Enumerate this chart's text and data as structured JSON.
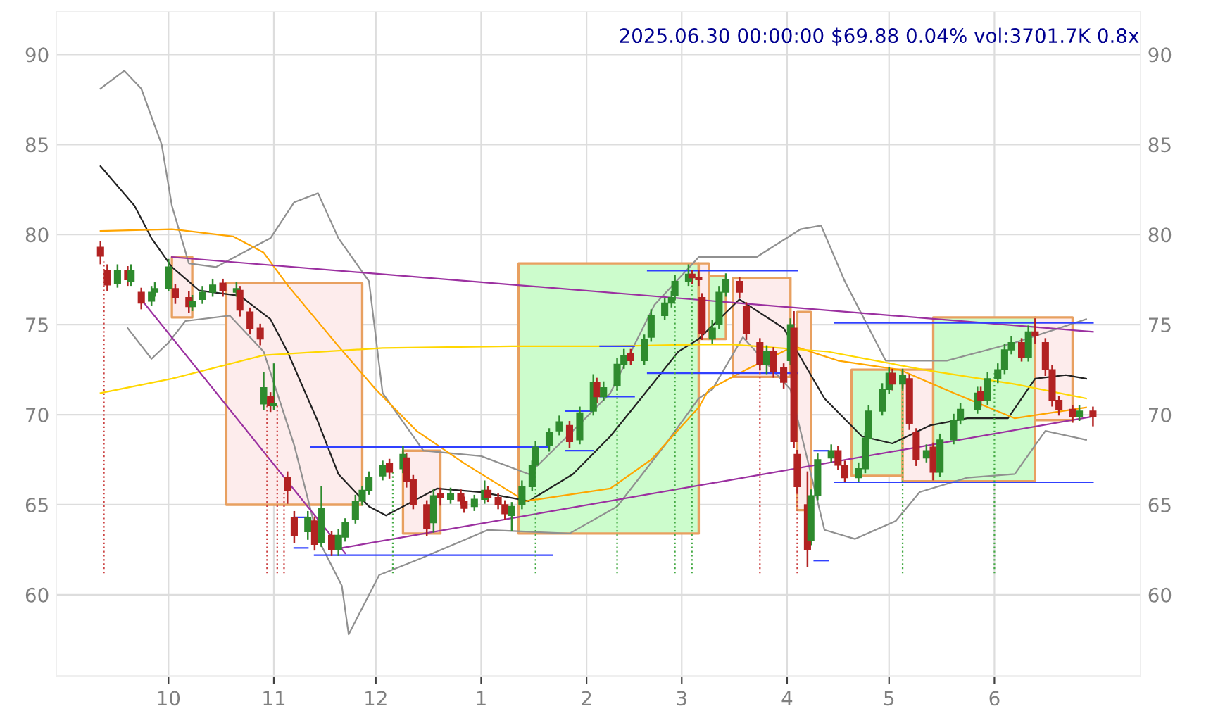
{
  "chart_data": {
    "type": "candlestick",
    "title": "2025.06.30 00:00:00 $69.88 0.04% vol:3701.7K 0.8x",
    "x": [
      "2024-09-11",
      "2024-09-13",
      "2024-09-16",
      "2024-09-19",
      "2024-09-20",
      "2024-09-23",
      "2024-09-26",
      "2024-09-27",
      "2024-10-01",
      "2024-10-03",
      "2024-10-07",
      "2024-10-08",
      "2024-10-11",
      "2024-10-14",
      "2024-10-17",
      "2024-10-21",
      "2024-10-22",
      "2024-10-25",
      "2024-10-28",
      "2024-10-29",
      "2024-10-31",
      "2024-11-01",
      "2024-11-05",
      "2024-11-07",
      "2024-11-11",
      "2024-11-13",
      "2024-11-15",
      "2024-11-18",
      "2024-11-20",
      "2024-11-22",
      "2024-11-25",
      "2024-11-27",
      "2024-11-29",
      "2024-12-03",
      "2024-12-05",
      "2024-12-09",
      "2024-12-10",
      "2024-12-12",
      "2024-12-16",
      "2024-12-18",
      "2024-12-20",
      "2024-12-23",
      "2024-12-26",
      "2024-12-27",
      "2024-12-30",
      "2025-01-02",
      "2025-01-03",
      "2025-01-06",
      "2025-01-08",
      "2025-01-10",
      "2025-01-13",
      "2025-01-16",
      "2025-01-17",
      "2025-01-21",
      "2025-01-24",
      "2025-01-27",
      "2025-01-30",
      "2025-02-03",
      "2025-02-04",
      "2025-02-06",
      "2025-02-10",
      "2025-02-12",
      "2025-02-14",
      "2025-02-18",
      "2025-02-20",
      "2025-02-24",
      "2025-02-26",
      "2025-02-27",
      "2025-03-03",
      "2025-03-04",
      "2025-03-06",
      "2025-03-07",
      "2025-03-10",
      "2025-03-12",
      "2025-03-14",
      "2025-03-18",
      "2025-03-20",
      "2025-03-24",
      "2025-03-26",
      "2025-03-28",
      "2025-03-31",
      "2025-04-02",
      "2025-04-03",
      "2025-04-04",
      "2025-04-07",
      "2025-04-08",
      "2025-04-10",
      "2025-04-14",
      "2025-04-16",
      "2025-04-18",
      "2025-04-22",
      "2025-04-24",
      "2025-04-25",
      "2025-04-29",
      "2025-05-01",
      "2025-05-02",
      "2025-05-05",
      "2025-05-07",
      "2025-05-09",
      "2025-05-12",
      "2025-05-14",
      "2025-05-16",
      "2025-05-20",
      "2025-05-22",
      "2025-05-27",
      "2025-05-28",
      "2025-05-30",
      "2025-06-02",
      "2025-06-04",
      "2025-06-06",
      "2025-06-09",
      "2025-06-11",
      "2025-06-13",
      "2025-06-16",
      "2025-06-18",
      "2025-06-20",
      "2025-06-24",
      "2025-06-26",
      "2025-06-30"
    ],
    "ohlc": [
      [
        79.3,
        79.6,
        78.4,
        78.8
      ],
      [
        78.0,
        78.3,
        76.9,
        77.2
      ],
      [
        77.3,
        78.3,
        77.1,
        78.0
      ],
      [
        78.0,
        78.2,
        77.2,
        77.5
      ],
      [
        77.4,
        78.3,
        77.2,
        78.0
      ],
      [
        76.8,
        77.0,
        75.9,
        76.2
      ],
      [
        76.3,
        77.1,
        76.1,
        76.8
      ],
      [
        76.8,
        77.3,
        76.6,
        77.0
      ],
      [
        77.0,
        78.6,
        76.9,
        78.2
      ],
      [
        77.0,
        77.2,
        76.2,
        76.5
      ],
      [
        76.5,
        76.8,
        75.7,
        76.0
      ],
      [
        76.0,
        76.6,
        75.8,
        76.3
      ],
      [
        76.4,
        77.1,
        76.2,
        76.8
      ],
      [
        76.8,
        77.5,
        76.6,
        77.2
      ],
      [
        77.3,
        77.5,
        76.6,
        76.9
      ],
      [
        76.8,
        77.3,
        76.6,
        77.0
      ],
      [
        76.9,
        77.1,
        75.5,
        75.8
      ],
      [
        75.7,
        75.9,
        74.5,
        74.8
      ],
      [
        74.8,
        75.0,
        73.9,
        74.2
      ],
      [
        70.6,
        72.3,
        70.3,
        71.5
      ],
      [
        71.0,
        71.2,
        70.2,
        70.5
      ],
      [
        70.5,
        72.8,
        70.3,
        70.6
      ],
      [
        66.5,
        66.8,
        65.1,
        65.8
      ],
      [
        64.3,
        64.6,
        62.9,
        63.3
      ],
      [
        63.5,
        64.6,
        63.1,
        64.3
      ],
      [
        64.1,
        64.3,
        62.5,
        62.8
      ],
      [
        62.9,
        66.0,
        62.7,
        64.8
      ],
      [
        63.3,
        63.5,
        62.2,
        62.5
      ],
      [
        62.5,
        63.6,
        62.2,
        63.3
      ],
      [
        63.2,
        64.2,
        63.0,
        64.0
      ],
      [
        64.2,
        65.5,
        64.0,
        65.2
      ],
      [
        65.2,
        66.0,
        65.0,
        65.8
      ],
      [
        65.8,
        66.8,
        65.6,
        66.5
      ],
      [
        66.6,
        67.4,
        66.4,
        67.2
      ],
      [
        67.3,
        67.5,
        66.5,
        66.8
      ],
      [
        67.0,
        68.2,
        66.8,
        67.8
      ],
      [
        67.6,
        67.8,
        66.0,
        66.3
      ],
      [
        66.4,
        66.6,
        64.8,
        65.0
      ],
      [
        65.0,
        65.2,
        63.3,
        63.7
      ],
      [
        64.0,
        65.8,
        63.5,
        65.5
      ],
      [
        65.6,
        65.9,
        65.0,
        65.4
      ],
      [
        65.3,
        65.9,
        65.1,
        65.6
      ],
      [
        65.6,
        65.8,
        65.0,
        65.2
      ],
      [
        65.2,
        65.4,
        64.6,
        64.8
      ],
      [
        64.9,
        65.5,
        64.7,
        65.3
      ],
      [
        65.3,
        66.3,
        65.1,
        65.8
      ],
      [
        65.8,
        66.0,
        65.2,
        65.4
      ],
      [
        65.4,
        65.6,
        64.8,
        65.0
      ],
      [
        65.0,
        65.2,
        64.2,
        64.5
      ],
      [
        64.4,
        65.1,
        63.6,
        64.9
      ],
      [
        65.0,
        66.3,
        64.8,
        66.0
      ],
      [
        66.0,
        67.4,
        65.8,
        67.2
      ],
      [
        67.2,
        68.5,
        67.0,
        68.2
      ],
      [
        68.3,
        69.2,
        68.0,
        69.0
      ],
      [
        69.1,
        69.9,
        68.9,
        69.6
      ],
      [
        69.4,
        69.6,
        68.2,
        68.5
      ],
      [
        68.6,
        70.4,
        68.4,
        70.1
      ],
      [
        70.2,
        72.2,
        70.0,
        71.8
      ],
      [
        71.8,
        72.0,
        70.7,
        71.0
      ],
      [
        71.0,
        71.8,
        70.8,
        71.5
      ],
      [
        71.6,
        73.1,
        71.4,
        72.8
      ],
      [
        72.8,
        73.6,
        72.6,
        73.3
      ],
      [
        73.4,
        73.6,
        72.8,
        73.0
      ],
      [
        73.0,
        74.4,
        72.8,
        74.2
      ],
      [
        74.3,
        75.8,
        74.1,
        75.5
      ],
      [
        75.5,
        76.4,
        75.3,
        76.2
      ],
      [
        76.2,
        76.8,
        76.0,
        76.5
      ],
      [
        76.6,
        77.7,
        76.4,
        77.4
      ],
      [
        77.4,
        78.3,
        77.2,
        77.8
      ],
      [
        77.8,
        78.0,
        77.3,
        77.6
      ],
      [
        77.6,
        78.0,
        77.2,
        77.5
      ],
      [
        76.5,
        76.7,
        74.2,
        74.5
      ],
      [
        74.2,
        75.2,
        74.0,
        74.8
      ],
      [
        75.0,
        77.1,
        74.8,
        76.8
      ],
      [
        76.8,
        77.8,
        76.6,
        77.5
      ],
      [
        77.4,
        77.6,
        76.5,
        76.8
      ],
      [
        76.0,
        76.2,
        74.2,
        74.5
      ],
      [
        74.0,
        74.2,
        72.5,
        72.8
      ],
      [
        72.8,
        73.8,
        72.3,
        73.5
      ],
      [
        73.5,
        73.7,
        72.1,
        72.4
      ],
      [
        72.6,
        72.8,
        71.5,
        71.8
      ],
      [
        73.0,
        75.3,
        72.8,
        75.0
      ],
      [
        74.8,
        75.7,
        68.2,
        68.5
      ],
      [
        67.8,
        68.0,
        65.7,
        66.0
      ],
      [
        65.0,
        66.8,
        61.6,
        62.5
      ],
      [
        63.0,
        65.8,
        62.8,
        65.5
      ],
      [
        65.5,
        67.8,
        65.3,
        67.5
      ],
      [
        67.6,
        68.3,
        67.4,
        68.0
      ],
      [
        68.0,
        68.2,
        67.0,
        67.2
      ],
      [
        67.2,
        67.4,
        66.3,
        66.5
      ],
      [
        66.5,
        67.3,
        66.3,
        67.0
      ],
      [
        67.0,
        69.0,
        66.8,
        68.7
      ],
      [
        68.7,
        70.5,
        68.5,
        70.2
      ],
      [
        70.2,
        71.7,
        70.0,
        71.4
      ],
      [
        71.4,
        72.6,
        71.2,
        72.3
      ],
      [
        72.3,
        72.5,
        71.4,
        71.7
      ],
      [
        71.7,
        72.5,
        71.5,
        72.2
      ],
      [
        72.0,
        72.2,
        69.2,
        69.5
      ],
      [
        69.0,
        69.2,
        67.2,
        67.5
      ],
      [
        67.6,
        68.3,
        67.4,
        68.0
      ],
      [
        68.2,
        68.4,
        66.4,
        66.8
      ],
      [
        66.8,
        68.9,
        66.6,
        68.6
      ],
      [
        68.6,
        70.0,
        68.4,
        69.7
      ],
      [
        69.7,
        70.6,
        69.5,
        70.3
      ],
      [
        70.3,
        71.5,
        70.1,
        71.2
      ],
      [
        71.3,
        71.5,
        70.5,
        70.8
      ],
      [
        70.8,
        72.3,
        70.6,
        72.0
      ],
      [
        72.0,
        72.8,
        71.8,
        72.5
      ],
      [
        72.5,
        73.9,
        72.3,
        73.6
      ],
      [
        73.6,
        74.3,
        73.4,
        74.0
      ],
      [
        74.0,
        74.2,
        73.0,
        73.2
      ],
      [
        73.2,
        74.9,
        73.0,
        74.6
      ],
      [
        74.6,
        75.3,
        74.0,
        74.4
      ],
      [
        74.0,
        74.2,
        72.2,
        72.5
      ],
      [
        72.5,
        72.7,
        70.5,
        70.8
      ],
      [
        70.8,
        71.0,
        70.0,
        70.3
      ],
      [
        70.3,
        70.5,
        69.6,
        69.9
      ],
      [
        69.9,
        70.5,
        69.7,
        70.2
      ],
      [
        70.2,
        70.4,
        69.4,
        69.88
      ]
    ],
    "colors": [
      "#b22222",
      "#b22222",
      "#2e8b2e",
      "#b22222",
      "#2e8b2e",
      "#b22222",
      "#2e8b2e",
      "#2e8b2e",
      "#2e8b2e",
      "#b22222",
      "#b22222",
      "#2e8b2e",
      "#2e8b2e",
      "#2e8b2e",
      "#b22222",
      "#2e8b2e",
      "#b22222",
      "#b22222",
      "#b22222",
      "#2e8b2e",
      "#b22222",
      "#2e8b2e",
      "#b22222",
      "#b22222",
      "#2e8b2e",
      "#b22222",
      "#2e8b2e",
      "#b22222",
      "#2e8b2e",
      "#2e8b2e",
      "#2e8b2e",
      "#2e8b2e",
      "#2e8b2e",
      "#2e8b2e",
      "#b22222",
      "#2e8b2e",
      "#b22222",
      "#b22222",
      "#b22222",
      "#2e8b2e",
      "#b22222",
      "#2e8b2e",
      "#b22222",
      "#b22222",
      "#2e8b2e",
      "#2e8b2e",
      "#b22222",
      "#b22222",
      "#b22222",
      "#2e8b2e",
      "#2e8b2e",
      "#2e8b2e",
      "#2e8b2e",
      "#2e8b2e",
      "#2e8b2e",
      "#b22222",
      "#2e8b2e",
      "#2e8b2e",
      "#b22222",
      "#2e8b2e",
      "#2e8b2e",
      "#2e8b2e",
      "#b22222",
      "#2e8b2e",
      "#2e8b2e",
      "#2e8b2e",
      "#2e8b2e",
      "#2e8b2e",
      "#2e8b2e",
      "#b22222",
      "#b22222",
      "#b22222",
      "#2e8b2e",
      "#2e8b2e",
      "#2e8b2e",
      "#b22222",
      "#b22222",
      "#b22222",
      "#2e8b2e",
      "#b22222",
      "#b22222",
      "#2e8b2e",
      "#b22222",
      "#b22222",
      "#b22222",
      "#2e8b2e",
      "#2e8b2e",
      "#2e8b2e",
      "#b22222",
      "#b22222",
      "#2e8b2e",
      "#2e8b2e",
      "#2e8b2e",
      "#2e8b2e",
      "#2e8b2e",
      "#b22222",
      "#2e8b2e",
      "#b22222",
      "#b22222",
      "#2e8b2e",
      "#b22222",
      "#2e8b2e",
      "#2e8b2e",
      "#2e8b2e",
      "#2e8b2e",
      "#b22222",
      "#2e8b2e",
      "#2e8b2e",
      "#2e8b2e",
      "#2e8b2e",
      "#b22222",
      "#2e8b2e",
      "#b22222",
      "#b22222",
      "#b22222",
      "#b22222",
      "#b22222",
      "#2e8b2e",
      "#b22222"
    ],
    "series": [
      {
        "type": "area",
        "color": "#fdecec",
        "x": [
          "2024-10-02",
          "2024-10-08"
        ],
        "values": [
          null,
          null
        ],
        "upper": [
          78.75,
          78.75
        ],
        "lower": [
          75.4,
          75.4
        ]
      },
      {
        "type": "area",
        "color": "#fdecec",
        "x": [
          "2024-10-18",
          "2024-11-27"
        ],
        "values": [
          null,
          null
        ],
        "upper": [
          77.3,
          77.3
        ],
        "lower": [
          65.0,
          65.0
        ]
      },
      {
        "type": "area",
        "color": "#fdecec",
        "x": [
          "2024-12-09",
          "2024-12-20"
        ],
        "values": [
          null,
          null
        ],
        "upper": [
          68.0,
          68.0
        ],
        "lower": [
          63.4,
          63.4
        ]
      },
      {
        "type": "area",
        "color": "#ccfccc",
        "x": [
          "2025-01-12",
          "2025-03-06"
        ],
        "values": [
          null,
          null
        ],
        "upper": [
          78.4,
          78.4
        ],
        "lower": [
          63.4,
          63.4
        ]
      },
      {
        "type": "area",
        "color": "#fdecec",
        "x": [
          "2025-03-06",
          "2025-03-09"
        ],
        "values": [
          null,
          null
        ],
        "upper": [
          78.4,
          78.4
        ],
        "lower": [
          74.2,
          74.2
        ]
      },
      {
        "type": "area",
        "color": "#ccfccc",
        "x": [
          "2025-03-09",
          "2025-03-14"
        ],
        "values": [
          null,
          null
        ],
        "upper": [
          77.7,
          77.7
        ],
        "lower": [
          74.2,
          74.2
        ]
      },
      {
        "type": "area",
        "color": "#fdecec",
        "x": [
          "2025-03-16",
          "2025-04-02"
        ],
        "values": [
          null,
          null
        ],
        "upper": [
          77.6,
          77.6
        ],
        "lower": [
          72.1,
          72.1
        ]
      },
      {
        "type": "area",
        "color": "#fdecec",
        "x": [
          "2025-04-04",
          "2025-04-08"
        ],
        "values": [
          null,
          null
        ],
        "upper": [
          75.7,
          75.7
        ],
        "lower": [
          64.7,
          64.7
        ]
      },
      {
        "type": "area",
        "color": "#ccfccc",
        "x": [
          "2025-04-20",
          "2025-05-05"
        ],
        "values": [
          null,
          null
        ],
        "upper": [
          72.5,
          72.5
        ],
        "lower": [
          66.6,
          66.6
        ]
      },
      {
        "type": "area",
        "color": "#fdecec",
        "x": [
          "2025-05-05",
          "2025-05-14"
        ],
        "values": [
          null,
          null
        ],
        "upper": [
          72.5,
          72.5
        ],
        "lower": [
          66.3,
          66.3
        ]
      },
      {
        "type": "area",
        "color": "#ccfccc",
        "x": [
          "2025-05-14",
          "2025-06-13"
        ],
        "values": [
          null,
          null
        ],
        "upper": [
          75.4,
          75.4
        ],
        "lower": [
          66.3,
          66.3
        ]
      },
      {
        "type": "area",
        "color": "#fdecec",
        "x": [
          "2025-06-13",
          "2025-06-24"
        ],
        "values": [
          null,
          null
        ],
        "upper": [
          75.4,
          75.4
        ],
        "lower": [
          69.7,
          69.7
        ]
      },
      {
        "type": "line",
        "color": "#909090",
        "x": [
          "2024-09-11",
          "2024-09-18",
          "2024-09-23",
          "2024-09-29",
          "2024-10-02",
          "2024-10-07",
          "2024-10-15",
          "2024-10-31",
          "2024-11-07",
          "2024-11-14",
          "2024-11-20",
          "2024-11-29",
          "2024-12-03",
          "2024-12-15",
          "2025-01-01",
          "2025-01-15",
          "2025-01-28",
          "2025-02-08",
          "2025-02-21",
          "2025-03-06",
          "2025-03-23",
          "2025-04-05",
          "2025-04-11",
          "2025-04-18",
          "2025-04-30",
          "2025-05-18",
          "2025-06-07",
          "2025-06-28"
        ],
        "values": [
          88.1,
          89.1,
          88.1,
          85.0,
          81.6,
          78.4,
          78.2,
          79.8,
          81.8,
          82.3,
          79.8,
          77.4,
          71.2,
          68.0,
          67.7,
          66.7,
          69.1,
          71.2,
          76.1,
          78.75,
          78.75,
          80.3,
          80.5,
          77.4,
          73.0,
          73.0,
          74.0,
          75.3
        ]
      },
      {
        "type": "line",
        "color": "#909090",
        "x": [
          "2024-09-19",
          "2024-09-26",
          "2024-10-01",
          "2024-10-06",
          "2024-10-19",
          "2024-10-29",
          "2024-11-07",
          "2024-11-14",
          "2024-11-21",
          "2024-11-23",
          "2024-12-02",
          "2024-12-14",
          "2025-01-03",
          "2025-01-27",
          "2025-02-10",
          "2025-02-24",
          "2025-03-06",
          "2025-03-10",
          "2025-03-19",
          "2025-04-02",
          "2025-04-12",
          "2025-04-21",
          "2025-05-03",
          "2025-05-10",
          "2025-05-24",
          "2025-06-07",
          "2025-06-16",
          "2025-06-28"
        ],
        "values": [
          74.8,
          73.1,
          74.0,
          75.2,
          75.5,
          73.5,
          68.3,
          63.1,
          60.5,
          57.8,
          61.1,
          62.0,
          63.6,
          63.4,
          64.9,
          68.3,
          70.9,
          71.4,
          74.3,
          71.4,
          63.6,
          63.1,
          64.1,
          65.7,
          66.5,
          66.7,
          69.1,
          68.6
        ]
      },
      {
        "type": "line",
        "color": "#222222",
        "x": [
          "2024-09-11",
          "2024-09-21",
          "2024-09-26",
          "2024-10-02",
          "2024-10-10",
          "2024-10-22",
          "2024-10-31",
          "2024-11-05",
          "2024-11-14",
          "2024-11-20",
          "2024-11-29",
          "2024-12-04",
          "2024-12-19",
          "2025-01-01",
          "2025-01-15",
          "2025-01-28",
          "2025-02-08",
          "2025-02-17",
          "2025-02-28",
          "2025-03-06",
          "2025-03-18",
          "2025-03-31",
          "2025-04-12",
          "2025-04-23",
          "2025-05-02",
          "2025-05-13",
          "2025-05-24",
          "2025-06-05",
          "2025-06-13",
          "2025-06-22",
          "2025-06-28"
        ],
        "values": [
          83.8,
          81.6,
          79.8,
          78.2,
          76.9,
          76.6,
          75.3,
          73.5,
          69.6,
          66.7,
          64.9,
          64.4,
          65.9,
          65.7,
          65.2,
          66.7,
          68.8,
          70.9,
          73.5,
          74.2,
          76.4,
          74.8,
          70.9,
          68.8,
          68.4,
          69.4,
          69.8,
          69.8,
          72.0,
          72.2,
          72.0
        ]
      },
      {
        "type": "line",
        "color": "#ffa500",
        "x": [
          "2024-09-11",
          "2024-10-02",
          "2024-10-20",
          "2024-10-29",
          "2024-11-05",
          "2024-11-20",
          "2024-12-01",
          "2024-12-13",
          "2024-12-27",
          "2025-01-14",
          "2025-02-08",
          "2025-02-20",
          "2025-03-06",
          "2025-03-09",
          "2025-03-20",
          "2025-04-03",
          "2025-04-16",
          "2025-05-04",
          "2025-05-20",
          "2025-06-07",
          "2025-06-28"
        ],
        "values": [
          80.2,
          80.3,
          79.9,
          79.0,
          77.2,
          73.8,
          71.4,
          69.1,
          67.3,
          65.2,
          65.9,
          67.5,
          70.4,
          71.4,
          72.5,
          73.8,
          73.0,
          72.5,
          71.2,
          69.8,
          70.4
        ]
      },
      {
        "type": "line",
        "color": "#ffd700",
        "x": [
          "2024-09-11",
          "2024-10-02",
          "2024-10-29",
          "2024-12-03",
          "2025-01-10",
          "2025-02-08",
          "2025-03-06",
          "2025-03-16",
          "2025-04-13",
          "2025-05-11",
          "2025-06-07",
          "2025-06-28"
        ],
        "values": [
          71.2,
          72.0,
          73.3,
          73.7,
          73.8,
          73.8,
          73.9,
          73.9,
          73.5,
          72.5,
          71.7,
          70.9
        ]
      },
      {
        "type": "line",
        "color": "#9b30a0",
        "x": [
          "2024-10-02",
          "2025-06-30"
        ],
        "values": [
          78.75,
          74.6
        ]
      },
      {
        "type": "line",
        "color": "#9b30a0",
        "x": [
          "2024-09-23",
          "2024-11-22"
        ],
        "values": [
          76.4,
          62.3
        ]
      },
      {
        "type": "line",
        "color": "#9b30a0",
        "x": [
          "2024-11-21",
          "2025-06-30"
        ],
        "values": [
          62.6,
          69.9
        ]
      },
      {
        "type": "line",
        "color": "#3040ff",
        "x": [
          "2024-11-12",
          "2025-01-21"
        ],
        "values": [
          68.2,
          68.2
        ]
      },
      {
        "type": "line",
        "color": "#3040ff",
        "x": [
          "2024-11-13",
          "2025-01-22"
        ],
        "values": [
          62.2,
          62.2
        ]
      },
      {
        "type": "line",
        "color": "#3040ff",
        "x": [
          "2024-11-07",
          "2024-11-11"
        ],
        "values": [
          64.3,
          64.3
        ]
      },
      {
        "type": "line",
        "color": "#3040ff",
        "x": [
          "2024-11-07",
          "2024-11-11"
        ],
        "values": [
          62.6,
          62.6
        ]
      },
      {
        "type": "line",
        "color": "#3040ff",
        "x": [
          "2025-01-26",
          "2025-02-03"
        ],
        "values": [
          70.2,
          70.2
        ]
      },
      {
        "type": "line",
        "color": "#3040ff",
        "x": [
          "2025-01-26",
          "2025-02-03"
        ],
        "values": [
          68.0,
          68.0
        ]
      },
      {
        "type": "line",
        "color": "#3040ff",
        "x": [
          "2025-02-05",
          "2025-02-15"
        ],
        "values": [
          73.8,
          73.8
        ]
      },
      {
        "type": "line",
        "color": "#3040ff",
        "x": [
          "2025-02-05",
          "2025-02-15"
        ],
        "values": [
          71.0,
          71.0
        ]
      },
      {
        "type": "line",
        "color": "#3040ff",
        "x": [
          "2025-02-19",
          "2025-04-04"
        ],
        "values": [
          78.0,
          78.0
        ]
      },
      {
        "type": "line",
        "color": "#3040ff",
        "x": [
          "2025-02-19",
          "2025-04-04"
        ],
        "values": [
          72.3,
          72.3
        ]
      },
      {
        "type": "line",
        "color": "#3040ff",
        "x": [
          "2025-04-09",
          "2025-04-13"
        ],
        "values": [
          68.0,
          68.0
        ]
      },
      {
        "type": "line",
        "color": "#3040ff",
        "x": [
          "2025-04-09",
          "2025-04-13"
        ],
        "values": [
          61.9,
          61.9
        ]
      },
      {
        "type": "line",
        "color": "#3040ff",
        "x": [
          "2025-04-15",
          "2025-06-30"
        ],
        "values": [
          75.1,
          75.1
        ]
      },
      {
        "type": "line",
        "color": "#3040ff",
        "x": [
          "2025-04-15",
          "2025-06-30"
        ],
        "values": [
          66.25,
          66.25
        ]
      },
      {
        "type": "line",
        "color": "#cc4444",
        "line_style": "dotted",
        "x": [
          "2024-09-12",
          "2024-09-12"
        ],
        "values": [
          61.2,
          78.5
        ]
      },
      {
        "type": "line",
        "color": "#cc4444",
        "line_style": "dotted",
        "x": [
          "2024-10-30",
          "2024-10-30"
        ],
        "values": [
          61.2,
          70.5
        ]
      },
      {
        "type": "line",
        "color": "#cc4444",
        "line_style": "dotted",
        "x": [
          "2024-11-02",
          "2024-11-02"
        ],
        "values": [
          61.2,
          70.6
        ]
      },
      {
        "type": "line",
        "color": "#cc4444",
        "line_style": "dotted",
        "x": [
          "2024-11-04",
          "2024-11-04"
        ],
        "values": [
          61.2,
          65.8
        ]
      },
      {
        "type": "line",
        "color": "#44aa44",
        "line_style": "dotted",
        "x": [
          "2024-12-06",
          "2024-12-06"
        ],
        "values": [
          61.2,
          66.8
        ]
      },
      {
        "type": "line",
        "color": "#44aa44",
        "line_style": "dotted",
        "x": [
          "2025-01-17",
          "2025-01-17"
        ],
        "values": [
          61.2,
          68.2
        ]
      },
      {
        "type": "line",
        "color": "#44aa44",
        "line_style": "dotted",
        "x": [
          "2025-02-10",
          "2025-02-10"
        ],
        "values": [
          61.2,
          72.8
        ]
      },
      {
        "type": "line",
        "color": "#44aa44",
        "line_style": "dotted",
        "x": [
          "2025-02-27",
          "2025-02-27"
        ],
        "values": [
          61.2,
          77.4
        ]
      },
      {
        "type": "line",
        "color": "#44aa44",
        "line_style": "dotted",
        "x": [
          "2025-03-04",
          "2025-03-04"
        ],
        "values": [
          61.2,
          77.6
        ]
      },
      {
        "type": "line",
        "color": "#cc4444",
        "line_style": "dotted",
        "x": [
          "2025-03-24",
          "2025-03-24"
        ],
        "values": [
          61.2,
          72.8
        ]
      },
      {
        "type": "line",
        "color": "#cc4444",
        "line_style": "dotted",
        "x": [
          "2025-04-04",
          "2025-04-04"
        ],
        "values": [
          61.2,
          66.0
        ]
      },
      {
        "type": "line",
        "color": "#44aa44",
        "line_style": "dotted",
        "x": [
          "2025-05-05",
          "2025-05-05"
        ],
        "values": [
          61.2,
          72.2
        ]
      },
      {
        "type": "line",
        "color": "#44aa44",
        "line_style": "dotted",
        "x": [
          "2025-06-01",
          "2025-06-01"
        ],
        "values": [
          61.2,
          72.3
        ]
      }
    ],
    "xlim": [
      "2024-08-29",
      "2025-07-14"
    ],
    "xticks": [
      {
        "value": "2024-10-01",
        "label": "10"
      },
      {
        "value": "2024-11-01",
        "label": "11"
      },
      {
        "value": "2024-12-01",
        "label": "12"
      },
      {
        "value": "2025-01-01",
        "label": "1"
      },
      {
        "value": "2025-02-01",
        "label": "2"
      },
      {
        "value": "2025-03-01",
        "label": "3"
      },
      {
        "value": "2025-04-01",
        "label": "4"
      },
      {
        "value": "2025-05-01",
        "label": "5"
      },
      {
        "value": "2025-06-01",
        "label": "6"
      }
    ],
    "ylim": [
      55.5,
      92.4
    ],
    "yticks": [
      60,
      65,
      70,
      75,
      80,
      85,
      90
    ],
    "y2lim": [
      55.5,
      92.4
    ],
    "y2ticks": [
      60,
      65,
      70,
      75,
      80,
      85,
      90
    ],
    "grid": true
  }
}
